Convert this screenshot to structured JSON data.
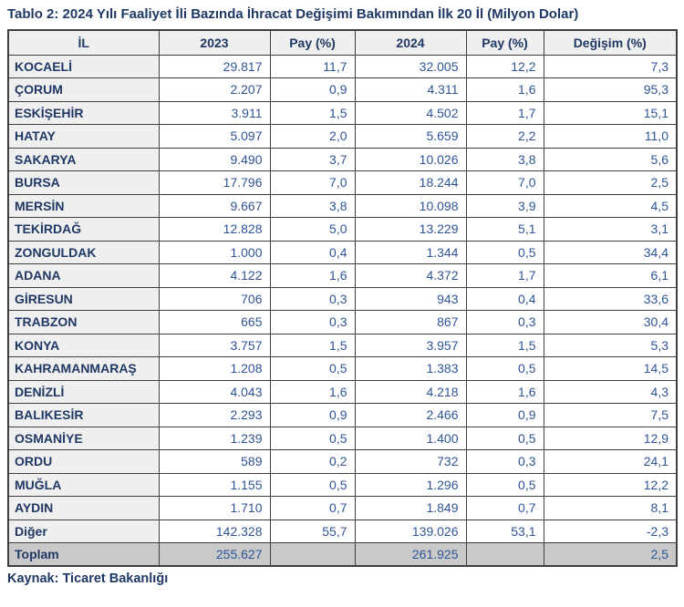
{
  "title": "Tablo 2: 2024 Yılı Faaliyet İli Bazında İhracat Değişimi Bakımından İlk 20 İl (Milyon Dolar)",
  "source": "Kaynak: Ticaret Bakanlığı",
  "colors": {
    "heading_navy": "#1F3864",
    "number_blue": "#2F5496",
    "border": "#3f3f3f",
    "header_bg": "#efefef",
    "label_column_bg": "#efefef",
    "total_row_bg": "#c9c9c9",
    "cell_bg": "#ffffff"
  },
  "table": {
    "headers": [
      "İL",
      "2023",
      "Pay (%)",
      "2024",
      "Pay (%)",
      "Değişim (%)"
    ],
    "column_keys": [
      "il",
      "v2023",
      "pay2023",
      "v2024",
      "pay2024",
      "degisim"
    ],
    "rows": [
      {
        "il": "KOCAELİ",
        "v2023": "29.817",
        "pay2023": "11,7",
        "v2024": "32.005",
        "pay2024": "12,2",
        "degisim": "7,3",
        "is_total": false
      },
      {
        "il": "ÇORUM",
        "v2023": "2.207",
        "pay2023": "0,9",
        "v2024": "4.311",
        "pay2024": "1,6",
        "degisim": "95,3",
        "is_total": false
      },
      {
        "il": "ESKİŞEHİR",
        "v2023": "3.911",
        "pay2023": "1,5",
        "v2024": "4.502",
        "pay2024": "1,7",
        "degisim": "15,1",
        "is_total": false
      },
      {
        "il": "HATAY",
        "v2023": "5.097",
        "pay2023": "2,0",
        "v2024": "5.659",
        "pay2024": "2,2",
        "degisim": "11,0",
        "is_total": false
      },
      {
        "il": "SAKARYA",
        "v2023": "9.490",
        "pay2023": "3,7",
        "v2024": "10.026",
        "pay2024": "3,8",
        "degisim": "5,6",
        "is_total": false
      },
      {
        "il": "BURSA",
        "v2023": "17.796",
        "pay2023": "7,0",
        "v2024": "18.244",
        "pay2024": "7,0",
        "degisim": "2,5",
        "is_total": false
      },
      {
        "il": "MERSİN",
        "v2023": "9.667",
        "pay2023": "3,8",
        "v2024": "10.098",
        "pay2024": "3,9",
        "degisim": "4,5",
        "is_total": false
      },
      {
        "il": "TEKİRDAĞ",
        "v2023": "12.828",
        "pay2023": "5,0",
        "v2024": "13.229",
        "pay2024": "5,1",
        "degisim": "3,1",
        "is_total": false
      },
      {
        "il": "ZONGULDAK",
        "v2023": "1.000",
        "pay2023": "0,4",
        "v2024": "1.344",
        "pay2024": "0,5",
        "degisim": "34,4",
        "is_total": false
      },
      {
        "il": "ADANA",
        "v2023": "4.122",
        "pay2023": "1,6",
        "v2024": "4.372",
        "pay2024": "1,7",
        "degisim": "6,1",
        "is_total": false
      },
      {
        "il": "GİRESUN",
        "v2023": "706",
        "pay2023": "0,3",
        "v2024": "943",
        "pay2024": "0,4",
        "degisim": "33,6",
        "is_total": false
      },
      {
        "il": "TRABZON",
        "v2023": "665",
        "pay2023": "0,3",
        "v2024": "867",
        "pay2024": "0,3",
        "degisim": "30,4",
        "is_total": false
      },
      {
        "il": "KONYA",
        "v2023": "3.757",
        "pay2023": "1,5",
        "v2024": "3.957",
        "pay2024": "1,5",
        "degisim": "5,3",
        "is_total": false
      },
      {
        "il": "KAHRAMANMARAŞ",
        "v2023": "1.208",
        "pay2023": "0,5",
        "v2024": "1.383",
        "pay2024": "0,5",
        "degisim": "14,5",
        "is_total": false
      },
      {
        "il": "DENİZLİ",
        "v2023": "4.043",
        "pay2023": "1,6",
        "v2024": "4.218",
        "pay2024": "1,6",
        "degisim": "4,3",
        "is_total": false
      },
      {
        "il": "BALIKESİR",
        "v2023": "2.293",
        "pay2023": "0,9",
        "v2024": "2.466",
        "pay2024": "0,9",
        "degisim": "7,5",
        "is_total": false
      },
      {
        "il": "OSMANİYE",
        "v2023": "1.239",
        "pay2023": "0,5",
        "v2024": "1.400",
        "pay2024": "0,5",
        "degisim": "12,9",
        "is_total": false
      },
      {
        "il": "ORDU",
        "v2023": "589",
        "pay2023": "0,2",
        "v2024": "732",
        "pay2024": "0,3",
        "degisim": "24,1",
        "is_total": false
      },
      {
        "il": "MUĞLA",
        "v2023": "1.155",
        "pay2023": "0,5",
        "v2024": "1.296",
        "pay2024": "0,5",
        "degisim": "12,2",
        "is_total": false
      },
      {
        "il": "AYDIN",
        "v2023": "1.710",
        "pay2023": "0,7",
        "v2024": "1.849",
        "pay2024": "0,7",
        "degisim": "8,1",
        "is_total": false
      },
      {
        "il": "Diğer",
        "v2023": "142.328",
        "pay2023": "55,7",
        "v2024": "139.026",
        "pay2024": "53,1",
        "degisim": "-2,3",
        "is_total": false
      },
      {
        "il": "Toplam",
        "v2023": "255.627",
        "pay2023": "",
        "v2024": "261.925",
        "pay2024": "",
        "degisim": "2,5",
        "is_total": true
      }
    ]
  }
}
